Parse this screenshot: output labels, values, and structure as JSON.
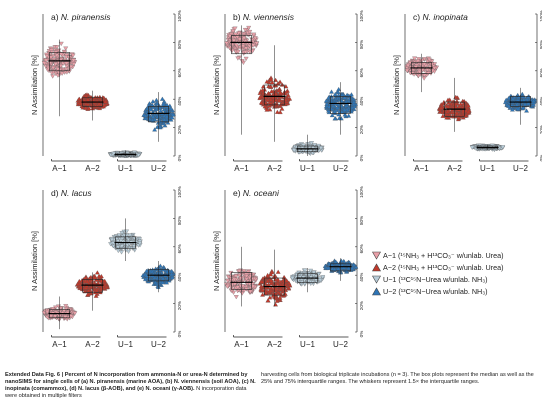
{
  "colors": {
    "A-1": "#e8a0a8",
    "A-2": "#c0392b",
    "U-1": "#b8ccd8",
    "U-2": "#2e75b6"
  },
  "legend": [
    {
      "key": "A-1",
      "label": "A−1 (¹⁵NH₃ + H¹³CO₃⁻  w/unlab. Urea)",
      "marker": "triangle-down"
    },
    {
      "key": "A-2",
      "label": "A−2 (¹⁵NH₃ + H¹³CO₃⁻  w/unlab. Urea)",
      "marker": "triangle-up"
    },
    {
      "key": "U-1",
      "label": "U−1 (¹³C¹⁵N−Urea w/unlab. NH₃)",
      "marker": "triangle-down"
    },
    {
      "key": "U-2",
      "label": "U−2 (¹³C¹⁵N−Urea w/unlab. NH₃)",
      "marker": "triangle-up"
    }
  ],
  "chart_data": [
    {
      "type": "violin-beeswarm",
      "panel": "a)",
      "title": "N. piranensis",
      "ylabel": "N Assimilation [%]",
      "ylim": [
        0,
        100
      ],
      "yticks": [
        "0%",
        "20%",
        "40%",
        "60%",
        "80%",
        "100%"
      ],
      "groups": [
        {
          "category": "A−1",
          "median": 67,
          "q1": 60,
          "q3": 73,
          "min": 28,
          "max": 82
        },
        {
          "category": "A−2",
          "median": 38,
          "q1": 35,
          "q3": 41,
          "min": 25,
          "max": 46
        },
        {
          "category": "U−1",
          "median": 1,
          "q1": 0,
          "q3": 2,
          "min": 0,
          "max": 4
        },
        {
          "category": "U−2",
          "median": 30,
          "q1": 24,
          "q3": 35,
          "min": 10,
          "max": 45
        }
      ]
    },
    {
      "type": "violin-beeswarm",
      "panel": "b)",
      "title": "N. viennensis",
      "ylabel": "N Assimilation [%]",
      "ylim": [
        0,
        100
      ],
      "yticks": [
        "0%",
        "20%",
        "40%",
        "60%",
        "80%",
        "100%"
      ],
      "groups": [
        {
          "category": "A−1",
          "median": 80,
          "q1": 72,
          "q3": 85,
          "min": 15,
          "max": 92
        },
        {
          "category": "A−2",
          "median": 42,
          "q1": 36,
          "q3": 50,
          "min": 10,
          "max": 78
        },
        {
          "category": "U−1",
          "median": 5,
          "q1": 3,
          "q3": 7,
          "min": 0,
          "max": 15
        },
        {
          "category": "U−2",
          "median": 37,
          "q1": 30,
          "q3": 42,
          "min": 15,
          "max": 52
        }
      ]
    },
    {
      "type": "violin-beeswarm",
      "panel": "c)",
      "title": "N. inopinata",
      "ylabel": "N Assimilation [%]",
      "ylim": [
        0,
        100
      ],
      "yticks": [
        "0%",
        "20%",
        "40%",
        "60%",
        "80%",
        "100%"
      ],
      "groups": [
        {
          "category": "A−1",
          "median": 62,
          "q1": 58,
          "q3": 66,
          "min": 45,
          "max": 72
        },
        {
          "category": "A−2",
          "median": 33,
          "q1": 28,
          "q3": 38,
          "min": 17,
          "max": 55
        },
        {
          "category": "U−1",
          "median": 6,
          "q1": 5,
          "q3": 7,
          "min": 4,
          "max": 8
        },
        {
          "category": "U−2",
          "median": 38,
          "q1": 35,
          "q3": 42,
          "min": 22,
          "max": 48
        }
      ]
    },
    {
      "type": "violin-beeswarm",
      "panel": "d)",
      "title": "N. lacus",
      "ylabel": "N Assimilation [%]",
      "ylim": [
        0,
        100
      ],
      "yticks": [
        "0%",
        "20%",
        "40%",
        "60%",
        "80%",
        "100%"
      ],
      "groups": [
        {
          "category": "A−1",
          "median": 13,
          "q1": 10,
          "q3": 16,
          "min": 2,
          "max": 25
        },
        {
          "category": "A−2",
          "median": 33,
          "q1": 28,
          "q3": 37,
          "min": 15,
          "max": 42
        },
        {
          "category": "U−1",
          "median": 63,
          "q1": 59,
          "q3": 67,
          "min": 50,
          "max": 80
        },
        {
          "category": "U−2",
          "median": 40,
          "q1": 36,
          "q3": 44,
          "min": 28,
          "max": 50
        }
      ]
    },
    {
      "type": "violin-beeswarm",
      "panel": "e)",
      "title": "N. oceani",
      "ylabel": "N Assimilation [%]",
      "ylim": [
        0,
        100
      ],
      "yticks": [
        "0%",
        "20%",
        "40%",
        "60%",
        "80%",
        "100%"
      ],
      "groups": [
        {
          "category": "A−1",
          "median": 35,
          "q1": 30,
          "q3": 42,
          "min": 18,
          "max": 60
        },
        {
          "category": "A−2",
          "median": 32,
          "q1": 26,
          "q3": 38,
          "min": 18,
          "max": 58
        },
        {
          "category": "U−1",
          "median": 38,
          "q1": 35,
          "q3": 41,
          "min": 28,
          "max": 45
        },
        {
          "category": "U−2",
          "median": 46,
          "q1": 43,
          "q3": 48,
          "min": 36,
          "max": 52
        }
      ]
    }
  ],
  "caption": {
    "bold_part": "Extended Data Fig. 6 | Percent of N incorporation from ammonia-N or urea-N determined by nanoSIMS for single cells of (a) N. piranensis (marine AOA), (b) N. viennensis (soil AOA), (c) N. inopinata (comammox), (d) N. lacus (β-AOB), and (e) N. oceani (γ-AOB).",
    "left_rest": " N incorporation data were obtained in multiple filters",
    "right": "harvesting cells from biological triplicate incubations (n = 3). The box plots represent the median as well as the 25% and 75% interquartile ranges. The whiskers represent 1.5× the interquartile ranges."
  }
}
